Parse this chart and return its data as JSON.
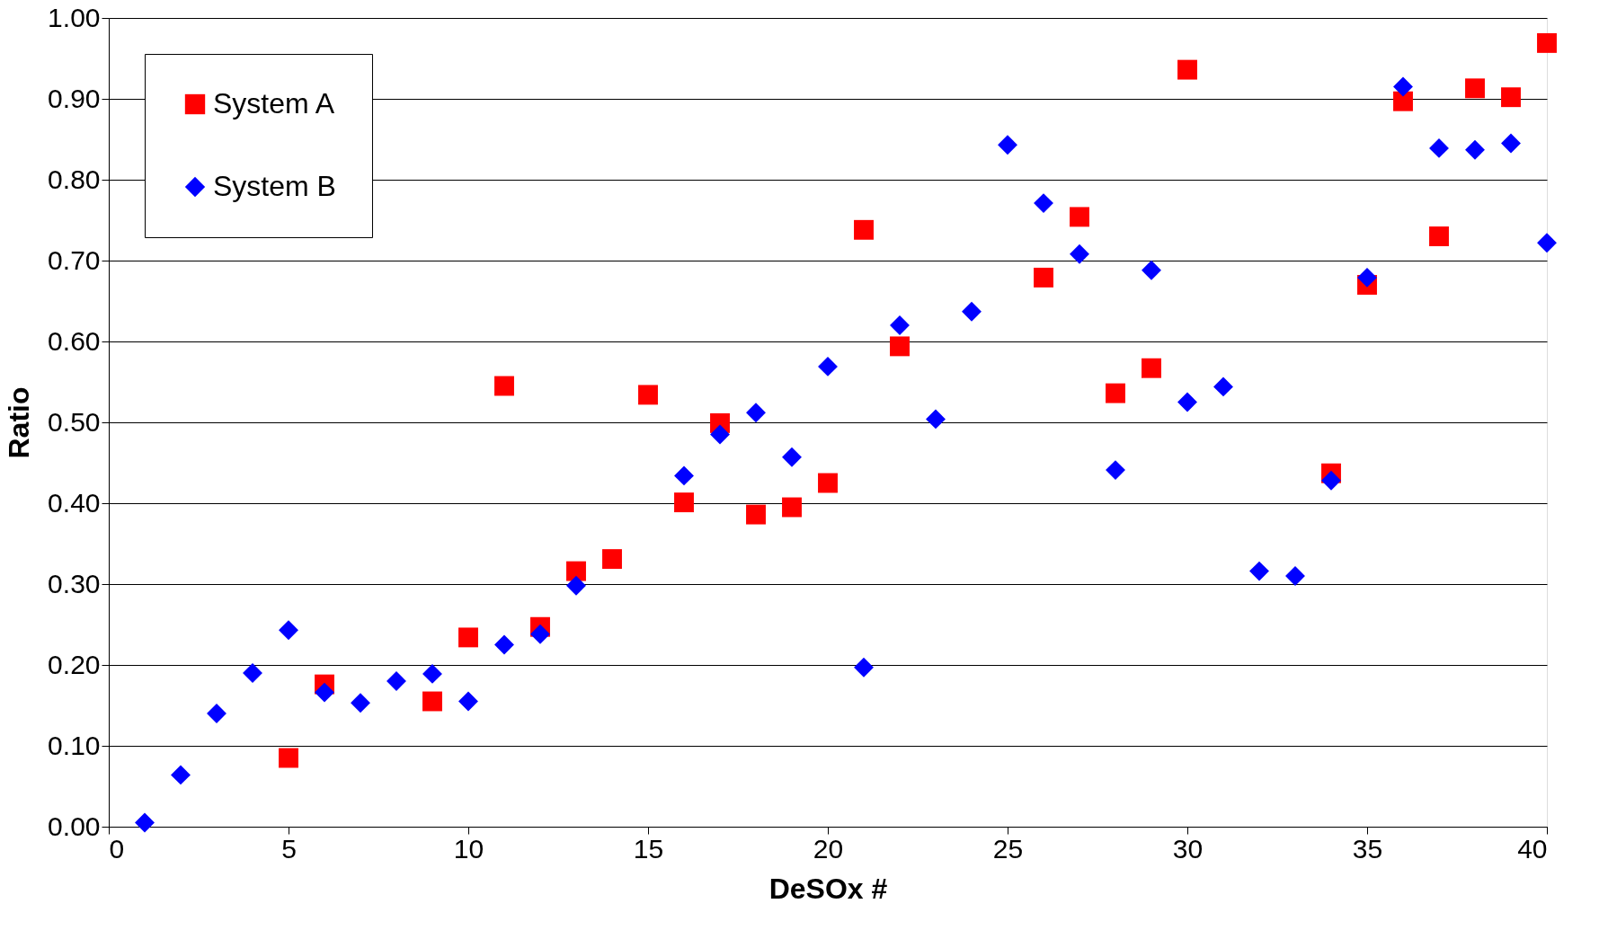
{
  "chart_data": {
    "type": "scatter",
    "xlabel": "DeSOx #",
    "ylabel": "Ratio",
    "series": [
      {
        "name": "System A",
        "color": "#ff0000",
        "marker": "square",
        "x": [
          5,
          6,
          9,
          10,
          11,
          12,
          13,
          14,
          15,
          16,
          17,
          18,
          19,
          20,
          21,
          22,
          26,
          27,
          28,
          29,
          30,
          34,
          35,
          36,
          37,
          38,
          39,
          40
        ],
        "values": [
          0.085,
          0.176,
          0.155,
          0.234,
          0.545,
          0.247,
          0.316,
          0.331,
          0.534,
          0.401,
          0.499,
          0.386,
          0.395,
          0.425,
          0.738,
          0.594,
          0.679,
          0.754,
          0.536,
          0.567,
          0.936,
          0.437,
          0.67,
          0.897,
          0.73,
          0.913,
          0.902,
          0.969
        ]
      },
      {
        "name": "System B",
        "color": "#0000ff",
        "marker": "diamond",
        "x": [
          1,
          2,
          3,
          4,
          5,
          6,
          7,
          8,
          9,
          10,
          11,
          12,
          13,
          16,
          17,
          18,
          19,
          20,
          21,
          22,
          23,
          24,
          25,
          26,
          27,
          28,
          29,
          30,
          31,
          32,
          33,
          34,
          35,
          36,
          37,
          38,
          39,
          40
        ],
        "values": [
          0.005,
          0.064,
          0.14,
          0.19,
          0.243,
          0.166,
          0.153,
          0.18,
          0.189,
          0.155,
          0.225,
          0.238,
          0.298,
          0.434,
          0.485,
          0.512,
          0.457,
          0.569,
          0.197,
          0.62,
          0.504,
          0.637,
          0.843,
          0.771,
          0.708,
          0.441,
          0.688,
          0.525,
          0.544,
          0.316,
          0.31,
          0.428,
          0.679,
          0.915,
          0.839,
          0.837,
          0.845,
          0.722
        ]
      }
    ],
    "xlim": [
      0,
      40
    ],
    "xticks": [
      0,
      5,
      10,
      15,
      20,
      25,
      30,
      35,
      40
    ],
    "ylim": [
      0,
      1
    ],
    "yticks": [
      {
        "value": 0,
        "label": "0.00"
      },
      {
        "value": 0.1,
        "label": "0.10"
      },
      {
        "value": 0.2,
        "label": "0.20"
      },
      {
        "value": 0.3,
        "label": "0.30"
      },
      {
        "value": 0.4,
        "label": "0.40"
      },
      {
        "value": 0.5,
        "label": "0.50"
      },
      {
        "value": 0.6,
        "label": "0.60"
      },
      {
        "value": 0.7,
        "label": "0.70"
      },
      {
        "value": 0.8,
        "label": "0.80"
      },
      {
        "value": 0.9,
        "label": "0.90"
      },
      {
        "value": 1,
        "label": "1.00"
      }
    ],
    "grid": "y",
    "legend": "top left"
  }
}
